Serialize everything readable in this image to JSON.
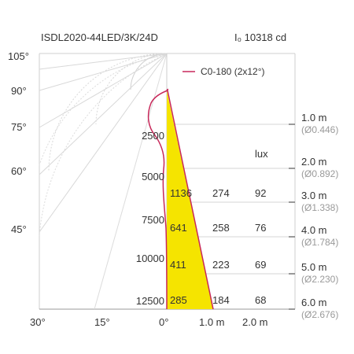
{
  "chart_data": {
    "type": "polar-beam-diagram",
    "title": "ISDL2020-44LED/3K/24D",
    "intensity_label": "I₀ 10318 cd",
    "legend": {
      "label": "C0-180 (2x12°)",
      "color": "#c8285a",
      "placement": "top-right"
    },
    "beam_color": "#f5e400",
    "angle_labels": [
      "105°",
      "90°",
      "75°",
      "60°",
      "45°",
      "30°",
      "15°",
      "0°"
    ],
    "intensity_ticks": [
      "2500",
      "5000",
      "7500",
      "10000",
      "12500"
    ],
    "bottom_distance_labels": [
      "1.0 m",
      "2.0 m"
    ],
    "lux_header": "lux",
    "rows": [
      {
        "distance": "1.0 m",
        "diameter": "(Ø0.446)",
        "values": []
      },
      {
        "distance": "2.0 m",
        "diameter": "(Ø0.892)",
        "values": []
      },
      {
        "distance": "3.0 m",
        "diameter": "(Ø1.338)",
        "values": [
          "1136",
          "274",
          "92"
        ]
      },
      {
        "distance": "4.0 m",
        "diameter": "(Ø1.784)",
        "values": [
          "641",
          "258",
          "76"
        ]
      },
      {
        "distance": "5.0 m",
        "diameter": "(Ø2.230)",
        "values": [
          "411",
          "223",
          "69"
        ]
      },
      {
        "distance": "6.0 m",
        "diameter": "(Ø2.676)",
        "values": [
          "285",
          "184",
          "68"
        ]
      }
    ]
  }
}
